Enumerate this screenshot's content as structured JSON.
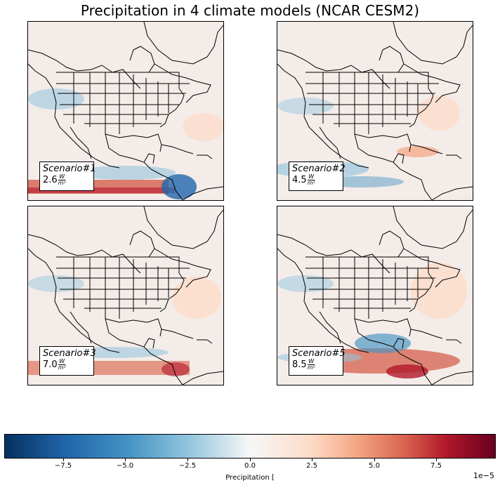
{
  "figure": {
    "title": "Precipitation in 4 climate models (NCAR CESM2)"
  },
  "panels": [
    {
      "scenario": "Scenario#1",
      "value": "2.6",
      "unit_num": "W",
      "unit_den": "m²"
    },
    {
      "scenario": "Scenario#2",
      "value": "4.5",
      "unit_num": "W",
      "unit_den": "m²"
    },
    {
      "scenario": "Scenario#3",
      "value": "7.0",
      "unit_num": "W",
      "unit_den": "m²"
    },
    {
      "scenario": "Scenario#5",
      "value": "8.5",
      "unit_num": "W",
      "unit_den": "m²"
    }
  ],
  "colorbar": {
    "label": "Precipitation [",
    "exponent": "1e−5",
    "ticks": [
      "−7.5",
      "−5.0",
      "−2.5",
      "0.0",
      "2.5",
      "5.0",
      "7.5"
    ],
    "range": [
      -10,
      10
    ],
    "colormap": "RdBu_r"
  },
  "colors": {
    "ocean_neutral": "#f4ece8",
    "warm": "#d6604d",
    "cool": "#4393c3"
  }
}
